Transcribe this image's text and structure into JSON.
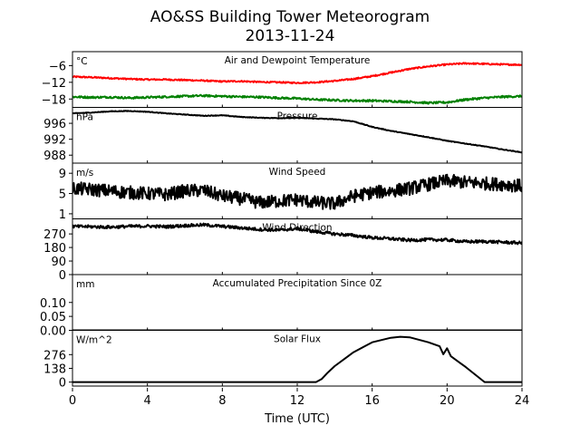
{
  "figure": {
    "title": "AO&SS Building Tower Meteorogram",
    "subtitle": "2013-11-24",
    "xlabel": "Time (UTC)",
    "x_ticks": [
      "0",
      "4",
      "8",
      "12",
      "16",
      "20",
      "24"
    ]
  },
  "chart_data": [
    {
      "type": "line",
      "title": "Air and Dewpoint Temperature",
      "unit_label": "°C",
      "x_unit": "hours UTC",
      "xlim": [
        0,
        24
      ],
      "ylim": [
        -21,
        -1
      ],
      "yticks": [
        -6,
        -12,
        -18
      ],
      "ytick_labels": [
        "−6",
        "−12",
        "−18"
      ],
      "series": [
        {
          "color": "#ff0000",
          "x": [
            0,
            1,
            2,
            3,
            4,
            5,
            6,
            7,
            8,
            9,
            10,
            11,
            12,
            13,
            14,
            15,
            16,
            17,
            18,
            19,
            20,
            21,
            22,
            23,
            24
          ],
          "y": [
            -10.0,
            -10.2,
            -10.5,
            -10.8,
            -11.0,
            -11.0,
            -11.2,
            -11.4,
            -11.7,
            -11.6,
            -11.9,
            -12.0,
            -12.2,
            -12.0,
            -11.5,
            -10.8,
            -9.8,
            -8.5,
            -7.2,
            -6.3,
            -5.6,
            -5.2,
            -5.4,
            -5.6,
            -5.7
          ],
          "noise": 0.25
        },
        {
          "color": "#008000",
          "x": [
            0,
            1,
            2,
            3,
            4,
            5,
            6,
            7,
            8,
            9,
            10,
            11,
            12,
            13,
            14,
            15,
            16,
            17,
            18,
            19,
            20,
            21,
            22,
            23,
            24
          ],
          "y": [
            -17.2,
            -17.4,
            -17.3,
            -17.6,
            -17.4,
            -17.2,
            -17.0,
            -16.8,
            -17.0,
            -17.2,
            -17.3,
            -17.6,
            -17.8,
            -18.2,
            -18.4,
            -18.6,
            -18.6,
            -18.8,
            -19.0,
            -19.4,
            -19.2,
            -18.2,
            -17.6,
            -17.2,
            -17.0
          ],
          "noise": 0.35
        }
      ]
    },
    {
      "type": "line",
      "title": "Pressure",
      "unit_label": "hPa",
      "xlim": [
        0,
        24
      ],
      "ylim": [
        986,
        1000
      ],
      "yticks": [
        996,
        992,
        988
      ],
      "ytick_labels": [
        "996",
        "992",
        "988"
      ],
      "series": [
        {
          "color": "#000000",
          "x": [
            0,
            1,
            2,
            3,
            4,
            5,
            6,
            7,
            8,
            9,
            10,
            11,
            12,
            13,
            14,
            15,
            16,
            17,
            18,
            19,
            20,
            21,
            22,
            23,
            24
          ],
          "y": [
            998.5,
            998.7,
            999.0,
            999.1,
            998.9,
            998.5,
            998.2,
            997.9,
            998.0,
            997.6,
            997.4,
            997.3,
            997.4,
            997.2,
            997.0,
            996.5,
            995.1,
            994.1,
            993.3,
            992.5,
            991.6,
            990.9,
            990.2,
            989.4,
            988.7
          ],
          "noise": 0.08
        }
      ]
    },
    {
      "type": "line",
      "title": "Wind Speed",
      "unit_label": "m/s",
      "xlim": [
        0,
        24
      ],
      "ylim": [
        0,
        11
      ],
      "yticks": [
        9,
        5,
        1
      ],
      "ytick_labels": [
        "9",
        "5",
        "1"
      ],
      "series": [
        {
          "color": "#000000",
          "x": [
            0,
            1,
            2,
            3,
            4,
            5,
            6,
            7,
            8,
            9,
            10,
            11,
            12,
            13,
            14,
            15,
            16,
            17,
            18,
            19,
            20,
            21,
            22,
            23,
            24
          ],
          "y": [
            6.0,
            5.8,
            5.5,
            5.2,
            5.0,
            4.8,
            5.5,
            5.6,
            4.5,
            4.0,
            3.2,
            3.5,
            3.8,
            3.2,
            3.0,
            4.5,
            5.2,
            5.5,
            6.0,
            6.8,
            7.5,
            7.2,
            7.0,
            6.8,
            6.5
          ],
          "noise": 1.3
        }
      ]
    },
    {
      "type": "line",
      "title": "Wind Direction",
      "xlim": [
        0,
        24
      ],
      "ylim": [
        0,
        370
      ],
      "yticks": [
        270,
        180,
        90,
        0
      ],
      "ytick_labels": [
        "270",
        "180",
        "90",
        "0"
      ],
      "series": [
        {
          "color": "#000000",
          "x": [
            0,
            1,
            2,
            3,
            4,
            5,
            6,
            7,
            8,
            9,
            10,
            11,
            12,
            13,
            14,
            15,
            16,
            17,
            18,
            19,
            20,
            21,
            22,
            23,
            24
          ],
          "y": [
            320,
            318,
            315,
            320,
            322,
            318,
            325,
            330,
            320,
            310,
            300,
            295,
            305,
            285,
            270,
            260,
            245,
            238,
            228,
            232,
            230,
            218,
            220,
            215,
            210
          ],
          "noise": 10
        }
      ]
    },
    {
      "type": "line",
      "title": "Accumulated Precipitation Since 0Z",
      "unit_label": "mm",
      "xlim": [
        0,
        24
      ],
      "ylim": [
        0,
        0.2
      ],
      "yticks": [
        0.1,
        0.05,
        0.0
      ],
      "ytick_labels": [
        "0.10",
        "0.05",
        "0.00"
      ],
      "series": [
        {
          "color": "#000000",
          "x": [
            0,
            24
          ],
          "y": [
            0,
            0
          ],
          "noise": 0
        }
      ]
    },
    {
      "type": "line",
      "title": "Solar Flux",
      "unit_label": "W/m^2",
      "xlim": [
        0,
        24
      ],
      "ylim": [
        -40,
        520
      ],
      "yticks": [
        276,
        138,
        0
      ],
      "ytick_labels": [
        "276",
        "138",
        "0"
      ],
      "series": [
        {
          "color": "#000000",
          "x": [
            0,
            13.0,
            13.3,
            13.6,
            14,
            15,
            16,
            17,
            17.5,
            18,
            19,
            19.6,
            19.8,
            20.0,
            20.2,
            21,
            21.6,
            22,
            24
          ],
          "y": [
            0,
            0,
            30,
            90,
            160,
            300,
            400,
            445,
            455,
            450,
            400,
            360,
            280,
            340,
            260,
            150,
            60,
            0,
            0
          ],
          "noise": 0
        }
      ]
    }
  ]
}
